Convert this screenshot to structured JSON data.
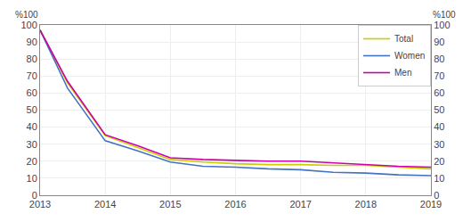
{
  "chart_data": {
    "type": "line",
    "x": [
      2013,
      2013.42,
      2014,
      2014.5,
      2015,
      2015.5,
      2016,
      2016.5,
      2017,
      2017.5,
      2018,
      2018.5,
      2019
    ],
    "series": [
      {
        "name": "Total",
        "color": "#cccc00",
        "values": [
          97,
          66,
          35,
          28,
          21,
          19.5,
          18.5,
          18,
          18,
          17.5,
          17.5,
          16.5,
          15.5
        ]
      },
      {
        "name": "Women",
        "color": "#4472c4",
        "values": [
          97,
          63,
          32,
          26,
          19.5,
          17,
          16.5,
          15.5,
          15,
          13.5,
          13,
          12,
          11.5
        ]
      },
      {
        "name": "Men",
        "color": "#cc00aa",
        "values": [
          97,
          67,
          35.5,
          29,
          22,
          21,
          20.5,
          20,
          20,
          19,
          18,
          17,
          16.5
        ]
      }
    ],
    "xlim": [
      2013,
      2019
    ],
    "xticks": [
      2013,
      2014,
      2015,
      2016,
      2017,
      2018,
      2019
    ],
    "ylim": [
      0,
      100
    ],
    "yticks": [
      0,
      10,
      20,
      30,
      40,
      50,
      60,
      70,
      80,
      90,
      100
    ],
    "y2lim": [
      0,
      100
    ],
    "y2ticks": [
      0,
      10,
      20,
      30,
      40,
      50,
      60,
      70,
      80,
      90,
      100
    ],
    "ylabel": "%100",
    "y2label": "%100",
    "grid": true,
    "legend": "upper right"
  }
}
